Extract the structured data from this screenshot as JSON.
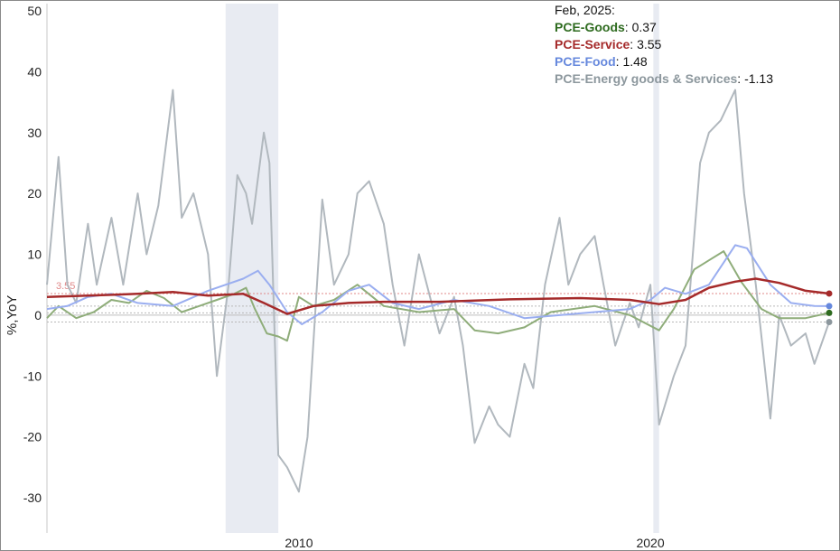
{
  "chart_data": {
    "type": "line",
    "ylabel": "%,YoY",
    "ylim": [
      -35,
      50
    ],
    "xlim": [
      "2002-11-01",
      "2025-03-01"
    ],
    "y_ticks": [
      50,
      40,
      30,
      20,
      10,
      0,
      -10,
      -20,
      -30
    ],
    "x_ticks": [
      {
        "date": "2010-01-01",
        "label": "2010"
      },
      {
        "date": "2020-01-01",
        "label": "2020"
      }
    ],
    "grid": false,
    "legend_position": "top-right",
    "legend_title": "Feb, 2025:",
    "shaded_periods": [
      {
        "start": "2007-12-01",
        "end": "2009-06-01"
      },
      {
        "start": "2020-02-01",
        "end": "2020-04-01"
      }
    ],
    "reference_label": "3.55",
    "series": [
      {
        "name": "PCE-Goods",
        "latest": "0.37",
        "color": "#2e6b1f",
        "line_color": "#8fad7a",
        "points": [
          [
            "2002-11-01",
            -0.5
          ],
          [
            "2003-03-01",
            1.5
          ],
          [
            "2003-09-01",
            -0.5
          ],
          [
            "2004-03-01",
            0.5
          ],
          [
            "2004-09-01",
            2.5
          ],
          [
            "2005-03-01",
            2.0
          ],
          [
            "2005-09-01",
            4.0
          ],
          [
            "2006-03-01",
            2.8
          ],
          [
            "2006-09-01",
            0.5
          ],
          [
            "2007-03-01",
            1.5
          ],
          [
            "2007-09-01",
            2.5
          ],
          [
            "2008-03-01",
            3.5
          ],
          [
            "2008-07-01",
            4.5
          ],
          [
            "2008-10-01",
            1.0
          ],
          [
            "2009-02-01",
            -3.0
          ],
          [
            "2009-06-01",
            -3.5
          ],
          [
            "2009-09-01",
            -4.2
          ],
          [
            "2010-01-01",
            3.0
          ],
          [
            "2010-06-01",
            1.5
          ],
          [
            "2011-01-01",
            2.5
          ],
          [
            "2011-09-01",
            5.0
          ],
          [
            "2012-06-01",
            1.5
          ],
          [
            "2013-06-01",
            0.5
          ],
          [
            "2014-06-01",
            1.0
          ],
          [
            "2015-01-01",
            -2.5
          ],
          [
            "2015-09-01",
            -3.0
          ],
          [
            "2016-06-01",
            -2.0
          ],
          [
            "2017-03-01",
            0.5
          ],
          [
            "2018-06-01",
            1.5
          ],
          [
            "2019-06-01",
            0.0
          ],
          [
            "2020-04-01",
            -2.5
          ],
          [
            "2020-09-01",
            1.0
          ],
          [
            "2021-04-01",
            7.5
          ],
          [
            "2021-09-01",
            9.0
          ],
          [
            "2022-02-01",
            10.5
          ],
          [
            "2022-08-01",
            5.5
          ],
          [
            "2023-03-01",
            1.0
          ],
          [
            "2023-09-01",
            -0.5
          ],
          [
            "2024-06-01",
            -0.5
          ],
          [
            "2025-02-01",
            0.37
          ]
        ]
      },
      {
        "name": "PCE-Service",
        "latest": "3.55",
        "color": "#a52a2a",
        "line_color": "#a52a2a",
        "points": [
          [
            "2002-11-01",
            3.0
          ],
          [
            "2004-01-01",
            3.2
          ],
          [
            "2005-06-01",
            3.5
          ],
          [
            "2006-06-01",
            3.8
          ],
          [
            "2007-06-01",
            3.2
          ],
          [
            "2008-06-01",
            3.5
          ],
          [
            "2009-01-01",
            2.0
          ],
          [
            "2009-09-01",
            0.2
          ],
          [
            "2010-06-01",
            1.5
          ],
          [
            "2011-06-01",
            2.0
          ],
          [
            "2012-06-01",
            2.2
          ],
          [
            "2014-01-01",
            2.2
          ],
          [
            "2016-01-01",
            2.6
          ],
          [
            "2018-01-01",
            2.8
          ],
          [
            "2019-06-01",
            2.5
          ],
          [
            "2020-04-01",
            1.8
          ],
          [
            "2021-01-01",
            2.5
          ],
          [
            "2021-09-01",
            4.5
          ],
          [
            "2022-06-01",
            5.5
          ],
          [
            "2023-01-01",
            6.0
          ],
          [
            "2023-09-01",
            5.3
          ],
          [
            "2024-06-01",
            4.0
          ],
          [
            "2025-02-01",
            3.55
          ]
        ]
      },
      {
        "name": "PCE-Food",
        "latest": "1.48",
        "color": "#6688dd",
        "line_color": "#9aaef0",
        "points": [
          [
            "2002-11-01",
            1.0
          ],
          [
            "2003-06-01",
            1.5
          ],
          [
            "2004-01-01",
            3.0
          ],
          [
            "2004-09-01",
            3.5
          ],
          [
            "2005-06-01",
            2.0
          ],
          [
            "2006-06-01",
            1.5
          ],
          [
            "2007-06-01",
            4.0
          ],
          [
            "2008-06-01",
            6.0
          ],
          [
            "2008-11-01",
            7.3
          ],
          [
            "2009-03-01",
            5.0
          ],
          [
            "2009-09-01",
            0.5
          ],
          [
            "2010-02-01",
            -1.5
          ],
          [
            "2010-09-01",
            0.5
          ],
          [
            "2011-06-01",
            4.0
          ],
          [
            "2012-01-01",
            5.0
          ],
          [
            "2012-09-01",
            2.0
          ],
          [
            "2013-06-01",
            1.0
          ],
          [
            "2014-06-01",
            2.5
          ],
          [
            "2015-06-01",
            1.5
          ],
          [
            "2016-06-01",
            -0.5
          ],
          [
            "2017-06-01",
            0.0
          ],
          [
            "2018-06-01",
            0.5
          ],
          [
            "2019-06-01",
            1.0
          ],
          [
            "2020-01-01",
            2.5
          ],
          [
            "2020-06-01",
            4.5
          ],
          [
            "2021-01-01",
            3.5
          ],
          [
            "2021-09-01",
            5.0
          ],
          [
            "2022-06-01",
            11.5
          ],
          [
            "2022-10-01",
            11.0
          ],
          [
            "2023-06-01",
            5.0
          ],
          [
            "2024-01-01",
            2.0
          ],
          [
            "2024-09-01",
            1.5
          ],
          [
            "2025-02-01",
            1.48
          ]
        ]
      },
      {
        "name": "PCE-Energy goods & Services",
        "latest": "-1.13",
        "color": "#8c979d",
        "line_color": "#b1b8be",
        "points": [
          [
            "2002-11-01",
            5.0
          ],
          [
            "2003-03-01",
            26.0
          ],
          [
            "2003-06-01",
            5.0
          ],
          [
            "2003-09-01",
            2.0
          ],
          [
            "2004-01-01",
            15.0
          ],
          [
            "2004-04-01",
            5.0
          ],
          [
            "2004-09-01",
            16.0
          ],
          [
            "2005-01-01",
            5.0
          ],
          [
            "2005-06-01",
            20.0
          ],
          [
            "2005-09-01",
            10.0
          ],
          [
            "2006-01-01",
            18.0
          ],
          [
            "2006-06-01",
            37.0
          ],
          [
            "2006-09-01",
            16.0
          ],
          [
            "2007-01-01",
            20.0
          ],
          [
            "2007-06-01",
            10.0
          ],
          [
            "2007-09-01",
            -10.0
          ],
          [
            "2008-01-01",
            5.0
          ],
          [
            "2008-04-01",
            23.0
          ],
          [
            "2008-07-01",
            20.0
          ],
          [
            "2008-09-01",
            15.0
          ],
          [
            "2009-01-01",
            30.0
          ],
          [
            "2009-03-01",
            25.0
          ],
          [
            "2009-06-01",
            -23.0
          ],
          [
            "2009-09-01",
            -25.0
          ],
          [
            "2010-01-01",
            -29.0
          ],
          [
            "2010-04-01",
            -20.0
          ],
          [
            "2010-09-01",
            19.0
          ],
          [
            "2011-01-01",
            5.0
          ],
          [
            "2011-06-01",
            10.0
          ],
          [
            "2011-09-01",
            20.0
          ],
          [
            "2012-01-01",
            22.0
          ],
          [
            "2012-06-01",
            15.0
          ],
          [
            "2012-09-01",
            5.0
          ],
          [
            "2013-01-01",
            -5.0
          ],
          [
            "2013-06-01",
            10.0
          ],
          [
            "2014-01-01",
            -3.0
          ],
          [
            "2014-06-01",
            3.0
          ],
          [
            "2014-09-01",
            -5.0
          ],
          [
            "2015-01-01",
            -21.0
          ],
          [
            "2015-06-01",
            -15.0
          ],
          [
            "2015-09-01",
            -18.0
          ],
          [
            "2016-01-01",
            -20.0
          ],
          [
            "2016-06-01",
            -8.0
          ],
          [
            "2016-09-01",
            -12.0
          ],
          [
            "2017-01-01",
            5.0
          ],
          [
            "2017-06-01",
            16.0
          ],
          [
            "2017-09-01",
            5.0
          ],
          [
            "2018-01-01",
            10.0
          ],
          [
            "2018-06-01",
            13.0
          ],
          [
            "2018-09-01",
            5.0
          ],
          [
            "2019-01-01",
            -5.0
          ],
          [
            "2019-06-01",
            2.0
          ],
          [
            "2019-09-01",
            -2.0
          ],
          [
            "2020-01-01",
            5.0
          ],
          [
            "2020-04-01",
            -18.0
          ],
          [
            "2020-09-01",
            -10.0
          ],
          [
            "2021-01-01",
            -5.0
          ],
          [
            "2021-06-01",
            25.0
          ],
          [
            "2021-09-01",
            30.0
          ],
          [
            "2022-01-01",
            32.0
          ],
          [
            "2022-06-01",
            37.0
          ],
          [
            "2022-09-01",
            20.0
          ],
          [
            "2023-01-01",
            5.0
          ],
          [
            "2023-06-01",
            -17.0
          ],
          [
            "2023-09-01",
            0.0
          ],
          [
            "2024-01-01",
            -5.0
          ],
          [
            "2024-06-01",
            -3.0
          ],
          [
            "2024-09-01",
            -8.0
          ],
          [
            "2025-02-01",
            -1.13
          ]
        ]
      }
    ]
  }
}
